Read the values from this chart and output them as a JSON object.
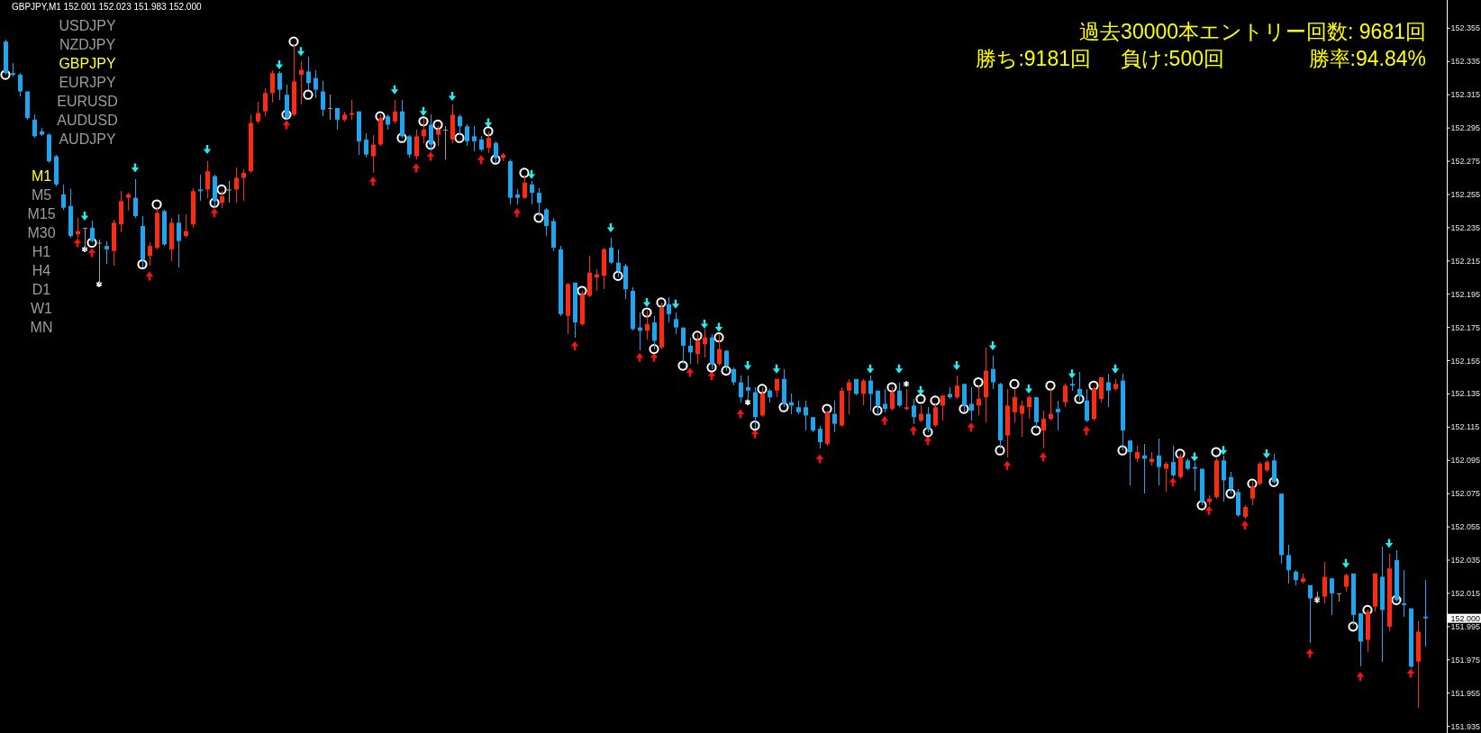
{
  "chart_data": {
    "type": "candlestick",
    "title": "GBPJPY,M1 152.001 152.023 151.983 152.000",
    "categories": [
      null,
      null,
      null,
      null,
      null,
      null,
      null,
      null,
      null,
      null,
      null,
      null,
      null,
      null,
      null,
      null,
      null,
      null,
      null,
      null,
      null,
      null,
      null,
      null,
      null,
      null,
      null,
      null,
      null,
      null,
      null,
      null,
      null,
      null,
      null,
      null,
      null,
      null,
      null,
      null,
      null,
      null,
      null,
      null,
      null,
      null,
      null,
      null,
      null,
      null,
      null,
      null,
      null,
      null,
      null,
      null,
      null,
      null,
      null,
      null,
      null,
      null,
      null,
      null,
      null,
      null,
      null,
      null,
      null,
      null,
      null,
      null,
      null,
      null,
      null,
      null,
      null,
      null,
      null,
      null,
      null,
      null,
      null,
      null,
      null,
      null,
      null,
      null,
      null,
      null,
      null,
      null,
      null,
      null,
      null,
      null,
      null,
      null,
      null,
      null,
      null,
      null,
      null,
      null,
      null,
      null,
      null,
      null,
      null,
      null,
      null,
      null,
      null,
      null,
      null,
      null,
      null,
      null,
      null,
      null,
      null,
      null,
      null,
      null,
      null,
      null,
      null,
      null,
      null,
      null,
      null,
      null,
      null,
      null,
      null,
      null,
      null,
      null,
      null,
      null,
      null,
      null,
      null,
      null,
      null,
      null,
      null,
      null,
      null,
      null,
      null,
      null,
      null,
      null,
      null,
      null,
      null,
      null,
      null,
      null,
      null,
      null,
      null,
      null,
      null,
      null,
      null,
      null,
      null,
      null,
      null,
      null,
      null,
      null,
      null,
      null,
      null,
      null,
      null,
      null,
      null,
      null,
      null,
      null,
      null,
      null,
      null,
      null,
      null,
      null,
      null,
      null,
      null,
      null,
      null,
      null,
      null,
      null
    ],
    "ohlc": [
      [
        152.347,
        152.348,
        152.327,
        152.328
      ],
      [
        152.328,
        152.334,
        152.326,
        152.327
      ],
      [
        152.327,
        152.328,
        152.314,
        152.317
      ],
      [
        152.317,
        152.317,
        152.3,
        152.301
      ],
      [
        152.3,
        152.303,
        152.289,
        152.29
      ],
      [
        152.293,
        152.295,
        152.29,
        152.291
      ],
      [
        152.291,
        152.292,
        152.274,
        152.275
      ],
      [
        152.278,
        152.279,
        152.26,
        152.261
      ],
      [
        152.255,
        152.261,
        152.246,
        152.247
      ],
      [
        152.248,
        152.258,
        152.229,
        152.23
      ],
      [
        152.231,
        152.241,
        152.229,
        152.233
      ],
      [
        152.235,
        152.235,
        152.221,
        152.235
      ],
      [
        152.235,
        152.239,
        152.226,
        152.227
      ],
      [
        152.226,
        152.228,
        152.201,
        152.226
      ],
      [
        152.224,
        152.227,
        152.213,
        152.222
      ],
      [
        152.221,
        152.24,
        152.212,
        152.238
      ],
      [
        152.237,
        152.257,
        152.232,
        152.251
      ],
      [
        152.253,
        152.256,
        152.245,
        152.255
      ],
      [
        152.253,
        152.264,
        152.241,
        152.242
      ],
      [
        152.236,
        152.242,
        152.211,
        152.216
      ],
      [
        152.218,
        152.226,
        152.212,
        152.224
      ],
      [
        152.223,
        152.247,
        152.222,
        152.244
      ],
      [
        152.245,
        152.246,
        152.224,
        152.225
      ],
      [
        152.222,
        152.241,
        152.215,
        152.238
      ],
      [
        152.238,
        152.243,
        152.211,
        152.227
      ],
      [
        152.23,
        152.243,
        152.229,
        152.233
      ],
      [
        152.237,
        152.259,
        152.235,
        152.257
      ],
      [
        152.258,
        152.267,
        152.251,
        152.257
      ],
      [
        152.258,
        152.275,
        152.253,
        152.269
      ],
      [
        152.266,
        152.267,
        152.247,
        152.251
      ],
      [
        152.25,
        152.257,
        152.247,
        152.254
      ],
      [
        152.258,
        152.263,
        152.25,
        152.258
      ],
      [
        152.258,
        152.271,
        152.25,
        152.265
      ],
      [
        152.265,
        152.27,
        152.251,
        152.268
      ],
      [
        152.269,
        152.303,
        152.268,
        152.298
      ],
      [
        152.299,
        152.311,
        152.298,
        152.304
      ],
      [
        152.305,
        152.319,
        152.302,
        152.316
      ],
      [
        152.316,
        152.33,
        152.31,
        152.328
      ],
      [
        152.328,
        152.329,
        152.312,
        152.318
      ],
      [
        152.315,
        152.321,
        152.3,
        152.301
      ],
      [
        152.303,
        152.345,
        152.302,
        152.323
      ],
      [
        152.327,
        152.335,
        152.309,
        152.33
      ],
      [
        152.329,
        152.338,
        152.318,
        152.322
      ],
      [
        152.325,
        152.33,
        152.313,
        152.318
      ],
      [
        152.317,
        152.323,
        152.302,
        152.306
      ],
      [
        152.307,
        152.315,
        152.3,
        152.307
      ],
      [
        152.307,
        152.307,
        152.294,
        152.3
      ],
      [
        152.3,
        152.305,
        152.299,
        152.303
      ],
      [
        152.303,
        152.312,
        152.3,
        152.304
      ],
      [
        152.305,
        152.305,
        152.279,
        152.287
      ],
      [
        152.288,
        152.292,
        152.277,
        152.279
      ],
      [
        152.278,
        152.291,
        152.268,
        152.285
      ],
      [
        152.285,
        152.303,
        152.284,
        152.301
      ],
      [
        152.302,
        152.303,
        152.294,
        152.297
      ],
      [
        152.299,
        152.312,
        152.298,
        152.305
      ],
      [
        152.305,
        152.312,
        152.289,
        152.29
      ],
      [
        152.29,
        152.291,
        152.277,
        152.279
      ],
      [
        152.278,
        152.294,
        152.276,
        152.29
      ],
      [
        152.29,
        152.301,
        152.286,
        152.294
      ],
      [
        152.297,
        152.303,
        152.281,
        152.285
      ],
      [
        152.291,
        152.296,
        152.284,
        152.294
      ],
      [
        152.294,
        152.296,
        152.276,
        152.294
      ],
      [
        152.288,
        152.309,
        152.286,
        152.303
      ],
      [
        152.302,
        152.303,
        152.291,
        152.296
      ],
      [
        152.296,
        152.297,
        152.284,
        152.287
      ],
      [
        152.29,
        152.296,
        152.281,
        152.287
      ],
      [
        152.288,
        152.29,
        152.281,
        152.282
      ],
      [
        152.283,
        152.293,
        152.28,
        152.289
      ],
      [
        152.286,
        152.287,
        152.274,
        152.277
      ],
      [
        152.277,
        152.28,
        152.275,
        152.279
      ],
      [
        152.275,
        152.276,
        152.249,
        152.253
      ],
      [
        152.255,
        152.258,
        152.249,
        152.253
      ],
      [
        152.253,
        152.266,
        152.252,
        152.262
      ],
      [
        152.261,
        152.263,
        152.249,
        152.256
      ],
      [
        152.256,
        152.259,
        152.242,
        152.25
      ],
      [
        152.246,
        152.247,
        152.23,
        152.236
      ],
      [
        152.239,
        152.241,
        152.221,
        152.223
      ],
      [
        152.222,
        152.224,
        152.182,
        152.183
      ],
      [
        152.182,
        152.202,
        152.171,
        152.201
      ],
      [
        152.202,
        152.202,
        152.169,
        152.178
      ],
      [
        152.177,
        152.197,
        152.176,
        152.195
      ],
      [
        152.194,
        152.218,
        152.193,
        152.208
      ],
      [
        152.205,
        152.21,
        152.197,
        152.207
      ],
      [
        152.206,
        152.223,
        152.198,
        152.222
      ],
      [
        152.223,
        152.229,
        152.213,
        152.214
      ],
      [
        152.214,
        152.222,
        152.205,
        152.209
      ],
      [
        152.212,
        152.213,
        152.192,
        152.198
      ],
      [
        152.197,
        152.199,
        152.173,
        152.174
      ],
      [
        152.175,
        152.184,
        152.161,
        152.173
      ],
      [
        152.173,
        152.185,
        152.168,
        152.177
      ],
      [
        152.178,
        152.182,
        152.162,
        152.167
      ],
      [
        152.163,
        152.19,
        152.162,
        152.187
      ],
      [
        152.189,
        152.193,
        152.178,
        152.183
      ],
      [
        152.18,
        152.184,
        152.171,
        152.175
      ],
      [
        152.175,
        152.175,
        152.153,
        152.164
      ],
      [
        152.164,
        152.169,
        152.153,
        152.16
      ],
      [
        152.159,
        152.171,
        152.153,
        152.167
      ],
      [
        152.165,
        152.174,
        152.157,
        152.169
      ],
      [
        152.169,
        152.171,
        152.15,
        152.153
      ],
      [
        152.153,
        152.171,
        152.152,
        152.162
      ],
      [
        152.161,
        152.161,
        152.149,
        152.152
      ],
      [
        152.15,
        152.151,
        152.14,
        152.142
      ],
      [
        152.142,
        152.146,
        152.13,
        152.133
      ],
      [
        152.139,
        152.146,
        152.132,
        152.137
      ],
      [
        152.136,
        152.139,
        152.114,
        152.121
      ],
      [
        152.122,
        152.139,
        152.121,
        152.135
      ],
      [
        152.137,
        152.138,
        152.13,
        152.133
      ],
      [
        152.137,
        152.144,
        152.133,
        152.144
      ],
      [
        152.144,
        152.15,
        152.127,
        152.129
      ],
      [
        152.13,
        152.135,
        152.123,
        152.128
      ],
      [
        152.127,
        152.131,
        152.123,
        152.124
      ],
      [
        152.127,
        152.131,
        152.113,
        152.122
      ],
      [
        152.121,
        152.121,
        152.112,
        152.113
      ],
      [
        152.114,
        152.116,
        152.102,
        152.106
      ],
      [
        152.105,
        152.125,
        152.104,
        152.124
      ],
      [
        152.123,
        152.131,
        152.112,
        152.117
      ],
      [
        152.116,
        152.139,
        152.115,
        152.137
      ],
      [
        152.137,
        152.144,
        152.123,
        152.142
      ],
      [
        152.144,
        152.144,
        152.134,
        152.135
      ],
      [
        152.135,
        152.144,
        152.128,
        152.143
      ],
      [
        152.143,
        152.146,
        152.125,
        152.135
      ],
      [
        152.137,
        152.137,
        152.122,
        152.128
      ],
      [
        152.129,
        152.138,
        152.124,
        152.126
      ],
      [
        152.126,
        152.139,
        152.125,
        152.136
      ],
      [
        152.137,
        152.142,
        152.127,
        152.128
      ],
      [
        152.126,
        152.138,
        152.125,
        152.127
      ],
      [
        152.128,
        152.132,
        152.117,
        152.121
      ],
      [
        152.119,
        152.128,
        152.118,
        152.123
      ],
      [
        152.123,
        152.127,
        152.112,
        152.114
      ],
      [
        152.116,
        152.129,
        152.115,
        152.127
      ],
      [
        152.128,
        152.134,
        152.119,
        152.134
      ],
      [
        152.135,
        152.139,
        152.132,
        152.133
      ],
      [
        152.133,
        152.146,
        152.132,
        152.14
      ],
      [
        152.141,
        152.141,
        152.124,
        152.128
      ],
      [
        152.129,
        152.139,
        152.119,
        152.125
      ],
      [
        152.128,
        152.14,
        152.122,
        152.132
      ],
      [
        152.133,
        152.163,
        152.118,
        152.149
      ],
      [
        152.15,
        152.158,
        152.138,
        152.142
      ],
      [
        152.141,
        152.142,
        152.102,
        152.107
      ],
      [
        152.11,
        152.138,
        152.097,
        152.128
      ],
      [
        152.124,
        152.138,
        152.118,
        152.133
      ],
      [
        152.123,
        152.131,
        152.109,
        152.128
      ],
      [
        152.127,
        152.134,
        152.12,
        152.133
      ],
      [
        152.133,
        152.133,
        152.114,
        152.118
      ],
      [
        152.113,
        152.125,
        152.102,
        152.12
      ],
      [
        152.12,
        152.138,
        152.119,
        152.123
      ],
      [
        152.126,
        152.131,
        152.113,
        152.124
      ],
      [
        152.13,
        152.141,
        152.127,
        152.14
      ],
      [
        152.141,
        152.144,
        152.137,
        152.14
      ],
      [
        152.138,
        152.148,
        152.131,
        152.134
      ],
      [
        152.131,
        152.138,
        152.118,
        152.119
      ],
      [
        152.12,
        152.139,
        152.119,
        152.138
      ],
      [
        152.132,
        152.145,
        152.13,
        152.145
      ],
      [
        152.142,
        152.147,
        152.127,
        152.137
      ],
      [
        152.138,
        152.144,
        152.137,
        152.141
      ],
      [
        152.143,
        152.147,
        152.101,
        152.113
      ],
      [
        152.107,
        152.107,
        152.08,
        152.1
      ],
      [
        152.096,
        152.104,
        152.094,
        152.1
      ],
      [
        152.098,
        152.105,
        152.075,
        152.096
      ],
      [
        152.094,
        152.1,
        152.092,
        152.096
      ],
      [
        152.098,
        152.108,
        152.08,
        152.091
      ],
      [
        152.09,
        152.094,
        152.076,
        152.093
      ],
      [
        152.094,
        152.104,
        152.085,
        152.086
      ],
      [
        152.085,
        152.099,
        152.084,
        152.097
      ],
      [
        152.095,
        152.096,
        152.089,
        152.09
      ],
      [
        152.091,
        152.094,
        152.077,
        152.09
      ],
      [
        152.09,
        152.09,
        152.068,
        152.07
      ],
      [
        152.07,
        152.074,
        152.068,
        152.072
      ],
      [
        152.073,
        152.096,
        152.072,
        152.095
      ],
      [
        152.095,
        152.098,
        152.07,
        152.083
      ],
      [
        152.085,
        152.088,
        152.075,
        152.078
      ],
      [
        152.076,
        152.078,
        152.061,
        152.062
      ],
      [
        152.061,
        152.068,
        152.06,
        152.067
      ],
      [
        152.072,
        152.082,
        152.068,
        152.079
      ],
      [
        152.081,
        152.094,
        152.08,
        152.093
      ],
      [
        152.089,
        152.095,
        152.088,
        152.094
      ],
      [
        152.095,
        152.099,
        152.081,
        152.082
      ],
      [
        152.075,
        152.075,
        152.033,
        152.038
      ],
      [
        152.038,
        152.044,
        152.021,
        152.029
      ],
      [
        152.028,
        152.029,
        152.02,
        152.023
      ],
      [
        152.022,
        152.027,
        152.021,
        152.024
      ],
      [
        152.02,
        152.02,
        151.985,
        152.012
      ],
      [
        152.013,
        152.016,
        152.011,
        152.013
      ],
      [
        152.013,
        152.034,
        152.009,
        152.025
      ],
      [
        152.024,
        152.024,
        152.002,
        152.015
      ],
      [
        152.015,
        152.015,
        152.01,
        152.015
      ],
      [
        152.019,
        152.027,
        152.016,
        152.026
      ],
      [
        152.027,
        152.027,
        151.996,
        152.002
      ],
      [
        152.003,
        152.003,
        151.971,
        151.986
      ],
      [
        151.987,
        152.005,
        151.98,
        152.004
      ],
      [
        152.007,
        152.027,
        152.004,
        152.027
      ],
      [
        152.025,
        152.043,
        151.974,
        152.005
      ],
      [
        151.995,
        152.039,
        151.992,
        152.03
      ],
      [
        152.035,
        152.041,
        152.01,
        152.011
      ],
      [
        152.009,
        152.029,
        152.001,
        152.008
      ],
      [
        152.006,
        152.006,
        151.97,
        151.971
      ],
      [
        151.974,
        151.998,
        151.946,
        151.992
      ],
      [
        152.001,
        152.023,
        151.983,
        152.0
      ]
    ],
    "colors": [
      "#1ea5ef",
      "#1ea5ef",
      "#1ea5ef",
      "#1ea5ef",
      "#1ea5ef",
      "#1ea5ef",
      "#1ea5ef",
      "#1ea5ef",
      "#1ea5ef",
      "#1ea5ef",
      "#ff2a12",
      "#a0a0a0",
      "#1ea5ef",
      "#a0a0a0",
      "#1ea5ef",
      "#ff2a12",
      "#ff2a12",
      "#ff2a12",
      "#1ea5ef",
      "#1ea5ef",
      "#ff2a12",
      "#ff2a12",
      "#1ea5ef",
      "#ff2a12",
      "#1ea5ef",
      "#ff2a12",
      "#ff2a12",
      "#1ea5ef",
      "#ff2a12",
      "#1ea5ef",
      "#ff2a12",
      "#a0a0a0",
      "#ff2a12",
      "#ff2a12",
      "#ff2a12",
      "#ff2a12",
      "#ff2a12",
      "#ff2a12",
      "#1ea5ef",
      "#1ea5ef",
      "#ff2a12",
      "#ff2a12",
      "#1ea5ef",
      "#1ea5ef",
      "#1ea5ef",
      "#a0a0a0",
      "#1ea5ef",
      "#ff2a12",
      "#ff2a12",
      "#1ea5ef",
      "#1ea5ef",
      "#ff2a12",
      "#ff2a12",
      "#1ea5ef",
      "#ff2a12",
      "#1ea5ef",
      "#1ea5ef",
      "#ff2a12",
      "#ff2a12",
      "#1ea5ef",
      "#ff2a12",
      "#a0a0a0",
      "#ff2a12",
      "#1ea5ef",
      "#1ea5ef",
      "#1ea5ef",
      "#1ea5ef",
      "#ff2a12",
      "#1ea5ef",
      "#ff2a12",
      "#1ea5ef",
      "#1ea5ef",
      "#ff2a12",
      "#1ea5ef",
      "#1ea5ef",
      "#1ea5ef",
      "#1ea5ef",
      "#1ea5ef",
      "#ff2a12",
      "#1ea5ef",
      "#ff2a12",
      "#ff2a12",
      "#ff2a12",
      "#ff2a12",
      "#1ea5ef",
      "#1ea5ef",
      "#1ea5ef",
      "#1ea5ef",
      "#1ea5ef",
      "#ff2a12",
      "#1ea5ef",
      "#ff2a12",
      "#1ea5ef",
      "#1ea5ef",
      "#1ea5ef",
      "#1ea5ef",
      "#ff2a12",
      "#ff2a12",
      "#1ea5ef",
      "#ff2a12",
      "#1ea5ef",
      "#1ea5ef",
      "#1ea5ef",
      "#1ea5ef",
      "#1ea5ef",
      "#ff2a12",
      "#1ea5ef",
      "#ff2a12",
      "#1ea5ef",
      "#1ea5ef",
      "#1ea5ef",
      "#1ea5ef",
      "#1ea5ef",
      "#1ea5ef",
      "#ff2a12",
      "#1ea5ef",
      "#ff2a12",
      "#ff2a12",
      "#1ea5ef",
      "#ff2a12",
      "#1ea5ef",
      "#1ea5ef",
      "#1ea5ef",
      "#ff2a12",
      "#1ea5ef",
      "#ff2a12",
      "#1ea5ef",
      "#ff2a12",
      "#1ea5ef",
      "#ff2a12",
      "#ff2a12",
      "#1ea5ef",
      "#ff2a12",
      "#1ea5ef",
      "#1ea5ef",
      "#ff2a12",
      "#ff2a12",
      "#1ea5ef",
      "#1ea5ef",
      "#ff2a12",
      "#ff2a12",
      "#ff2a12",
      "#ff2a12",
      "#1ea5ef",
      "#ff2a12",
      "#ff2a12",
      "#1ea5ef",
      "#ff2a12",
      "#1ea5ef",
      "#1ea5ef",
      "#1ea5ef",
      "#ff2a12",
      "#ff2a12",
      "#1ea5ef",
      "#ff2a12",
      "#1ea5ef",
      "#1ea5ef",
      "#ff2a12",
      "#1ea5ef",
      "#ff2a12",
      "#1ea5ef",
      "#ff2a12",
      "#1ea5ef",
      "#ff2a12",
      "#1ea5ef",
      "#1ea5ef",
      "#1ea5ef",
      "#ff2a12",
      "#ff2a12",
      "#1ea5ef",
      "#1ea5ef",
      "#1ea5ef",
      "#ff2a12",
      "#ff2a12",
      "#ff2a12",
      "#ff2a12",
      "#1ea5ef",
      "#1ea5ef",
      "#1ea5ef",
      "#1ea5ef",
      "#ff2a12",
      "#1ea5ef",
      "#a0a0a0",
      "#ff2a12",
      "#1ea5ef",
      "#a0a0a0",
      "#ff2a12",
      "#1ea5ef",
      "#1ea5ef",
      "#ff2a12",
      "#ff2a12",
      "#1ea5ef",
      "#ff2a12",
      "#1ea5ef",
      "#1ea5ef",
      "#1ea5ef",
      "#ff2a12",
      "#1ea5ef"
    ],
    "series": [
      {
        "type": "scatter",
        "color": "#22eef2",
        "marker": "triangle",
        "values": [
          null,
          null,
          null,
          null,
          null,
          null,
          null,
          null,
          null,
          null,
          null,
          152.242,
          null,
          null,
          null,
          null,
          null,
          null,
          152.271,
          null,
          null,
          null,
          null,
          null,
          null,
          null,
          null,
          null,
          152.282,
          null,
          null,
          null,
          null,
          null,
          null,
          null,
          null,
          null,
          152.333,
          null,
          null,
          152.341,
          null,
          null,
          null,
          null,
          null,
          null,
          null,
          null,
          null,
          null,
          null,
          null,
          152.318,
          null,
          null,
          null,
          152.305,
          null,
          null,
          null,
          152.314,
          null,
          null,
          null,
          null,
          152.298,
          null,
          null,
          null,
          null,
          null,
          152.267,
          null,
          null,
          null,
          null,
          null,
          null,
          null,
          null,
          null,
          null,
          152.235,
          null,
          null,
          null,
          null,
          152.19,
          null,
          null,
          null,
          152.189,
          null,
          null,
          null,
          152.177,
          null,
          152.175,
          null,
          null,
          null,
          152.152,
          null,
          null,
          null,
          152.15,
          null,
          null,
          null,
          null,
          null,
          null,
          null,
          null,
          null,
          null,
          null,
          null,
          152.15,
          null,
          null,
          null,
          152.15,
          null,
          null,
          152.137,
          null,
          null,
          null,
          null,
          152.152,
          null,
          null,
          null,
          null,
          152.164,
          null,
          null,
          null,
          null,
          152.138,
          null,
          null,
          null,
          null,
          null,
          152.147,
          null,
          null,
          null,
          null,
          null,
          152.15,
          null,
          null,
          null,
          null,
          null,
          null,
          null,
          null,
          null,
          null,
          152.097,
          null,
          null,
          null,
          152.101,
          null,
          null,
          null,
          null,
          null,
          152.099,
          null,
          null,
          null,
          null,
          null,
          null,
          null,
          null,
          null,
          null,
          152.033,
          null,
          null,
          null,
          null,
          null,
          152.045,
          null,
          null,
          null,
          null,
          null
        ]
      },
      {
        "type": "scatter",
        "color": "#ff1010",
        "marker": "triangle",
        "values": [
          null,
          null,
          null,
          null,
          null,
          null,
          null,
          null,
          null,
          null,
          152.226,
          null,
          152.22,
          null,
          null,
          null,
          null,
          null,
          null,
          null,
          152.206,
          null,
          null,
          null,
          null,
          null,
          null,
          null,
          null,
          152.244,
          null,
          null,
          null,
          null,
          null,
          null,
          null,
          null,
          null,
          152.297,
          null,
          null,
          null,
          null,
          null,
          null,
          null,
          null,
          null,
          null,
          null,
          152.263,
          null,
          null,
          null,
          null,
          null,
          152.271,
          null,
          152.278,
          null,
          null,
          null,
          null,
          null,
          null,
          152.276,
          null,
          null,
          null,
          null,
          152.244,
          null,
          null,
          null,
          null,
          null,
          null,
          null,
          152.164,
          null,
          null,
          null,
          null,
          null,
          null,
          null,
          null,
          152.157,
          null,
          152.157,
          null,
          null,
          null,
          null,
          152.148,
          null,
          null,
          152.146,
          null,
          null,
          null,
          152.123,
          null,
          152.111,
          null,
          null,
          null,
          null,
          null,
          null,
          null,
          null,
          152.096,
          null,
          null,
          null,
          null,
          null,
          null,
          null,
          null,
          152.119,
          null,
          null,
          null,
          152.113,
          null,
          152.107,
          null,
          null,
          null,
          null,
          null,
          152.115,
          null,
          null,
          null,
          null,
          152.092,
          null,
          null,
          null,
          null,
          152.097,
          null,
          null,
          null,
          null,
          null,
          152.113,
          null,
          null,
          null,
          null,
          null,
          null,
          null,
          null,
          null,
          null,
          null,
          152.082,
          null,
          null,
          null,
          null,
          152.065,
          null,
          null,
          null,
          null,
          152.056,
          null,
          null,
          null,
          null,
          null,
          null,
          null,
          null,
          151.979,
          null,
          null,
          null,
          null,
          null,
          null,
          151.965,
          null,
          null,
          null,
          null,
          null,
          null,
          151.967,
          null,
          null
        ]
      },
      {
        "type": "scatter",
        "color": "#ffffff",
        "marker": "circle",
        "values": [
          152.327,
          null,
          null,
          null,
          null,
          null,
          null,
          null,
          null,
          null,
          null,
          null,
          152.226,
          null,
          null,
          null,
          null,
          null,
          null,
          152.213,
          null,
          152.249,
          null,
          null,
          null,
          null,
          null,
          null,
          null,
          152.25,
          152.258,
          null,
          null,
          null,
          null,
          null,
          null,
          null,
          null,
          152.303,
          152.347,
          null,
          152.315,
          null,
          null,
          null,
          null,
          null,
          null,
          null,
          null,
          null,
          152.302,
          null,
          null,
          152.289,
          null,
          null,
          152.299,
          152.285,
          152.297,
          null,
          null,
          152.289,
          null,
          null,
          null,
          152.293,
          152.276,
          null,
          null,
          null,
          152.268,
          null,
          152.241,
          null,
          null,
          null,
          null,
          null,
          152.197,
          null,
          null,
          null,
          null,
          152.206,
          null,
          null,
          null,
          152.184,
          152.162,
          152.19,
          null,
          null,
          152.152,
          null,
          152.17,
          null,
          152.151,
          152.169,
          152.149,
          null,
          null,
          null,
          152.116,
          152.138,
          null,
          null,
          152.127,
          null,
          null,
          null,
          null,
          null,
          152.126,
          null,
          null,
          null,
          null,
          null,
          null,
          152.125,
          null,
          152.139,
          null,
          null,
          null,
          152.132,
          152.112,
          152.131,
          null,
          null,
          null,
          152.126,
          null,
          152.142,
          null,
          null,
          152.101,
          null,
          152.141,
          null,
          null,
          152.113,
          null,
          152.14,
          null,
          null,
          null,
          152.132,
          null,
          152.14,
          null,
          null,
          null,
          152.101,
          null,
          null,
          null,
          null,
          null,
          null,
          null,
          152.099,
          null,
          null,
          152.068,
          null,
          152.1,
          null,
          152.075,
          null,
          null,
          152.081,
          null,
          null,
          152.082,
          null,
          null,
          null,
          null,
          null,
          null,
          null,
          null,
          null,
          null,
          151.995,
          null,
          152.005,
          null,
          null,
          null,
          152.011,
          null,
          null,
          null,
          null
        ]
      },
      {
        "type": "scatter",
        "color": "#ffffff",
        "marker": "cross",
        "values": [
          null,
          null,
          null,
          null,
          null,
          null,
          null,
          null,
          null,
          null,
          null,
          152.222,
          null,
          152.201,
          null,
          null,
          null,
          null,
          null,
          null,
          null,
          null,
          null,
          null,
          null,
          null,
          null,
          null,
          null,
          null,
          null,
          null,
          null,
          null,
          null,
          null,
          null,
          null,
          null,
          null,
          null,
          null,
          null,
          null,
          null,
          null,
          null,
          null,
          null,
          null,
          null,
          null,
          null,
          null,
          null,
          null,
          null,
          null,
          null,
          null,
          null,
          null,
          null,
          null,
          null,
          null,
          null,
          null,
          null,
          null,
          null,
          null,
          null,
          null,
          null,
          null,
          null,
          null,
          null,
          null,
          null,
          null,
          null,
          null,
          null,
          null,
          null,
          null,
          null,
          null,
          null,
          null,
          null,
          null,
          null,
          null,
          null,
          null,
          null,
          null,
          null,
          null,
          null,
          152.13,
          null,
          null,
          null,
          null,
          null,
          null,
          null,
          null,
          null,
          null,
          null,
          null,
          null,
          null,
          null,
          null,
          null,
          null,
          null,
          null,
          null,
          152.141,
          null,
          null,
          null,
          null,
          null,
          null,
          null,
          null,
          null,
          null,
          null,
          null,
          null,
          null,
          null,
          null,
          null,
          null,
          null,
          null,
          null,
          null,
          null,
          null,
          null,
          null,
          null,
          null,
          null,
          null,
          null,
          null,
          null,
          null,
          null,
          null,
          null,
          null,
          null,
          null,
          null,
          null,
          null,
          null,
          null,
          null,
          null,
          null,
          null,
          null,
          null,
          null,
          null,
          null,
          null,
          null,
          152.011,
          null,
          null,
          null,
          null,
          null,
          null,
          null,
          null,
          null,
          null,
          null,
          null,
          null,
          null,
          null
        ]
      }
    ],
    "ylim": [
      151.931,
      152.372
    ],
    "yticks": [
      152.355,
      152.335,
      152.315,
      152.295,
      152.275,
      152.255,
      152.235,
      152.215,
      152.195,
      152.175,
      152.155,
      152.135,
      152.115,
      152.095,
      152.075,
      152.055,
      152.035,
      152.015,
      {
        "value": 152.0,
        "label": "152.000"
      },
      151.995,
      151.975,
      151.955,
      151.935
    ],
    "tick_labels": "y",
    "annotations": [
      "USDJPY",
      "NZDJPY",
      "GBPJPY",
      "EURJPY",
      "EURUSD",
      "AUDUSD",
      "AUDJPY",
      "M1",
      "M5",
      "M15",
      "M30",
      "H1",
      "H4",
      "D1",
      "W1",
      "MN",
      "過去30000本エントリー回数: 9681回",
      "勝ち:9181回",
      "負け:500回",
      "勝率:94.84%"
    ]
  }
}
